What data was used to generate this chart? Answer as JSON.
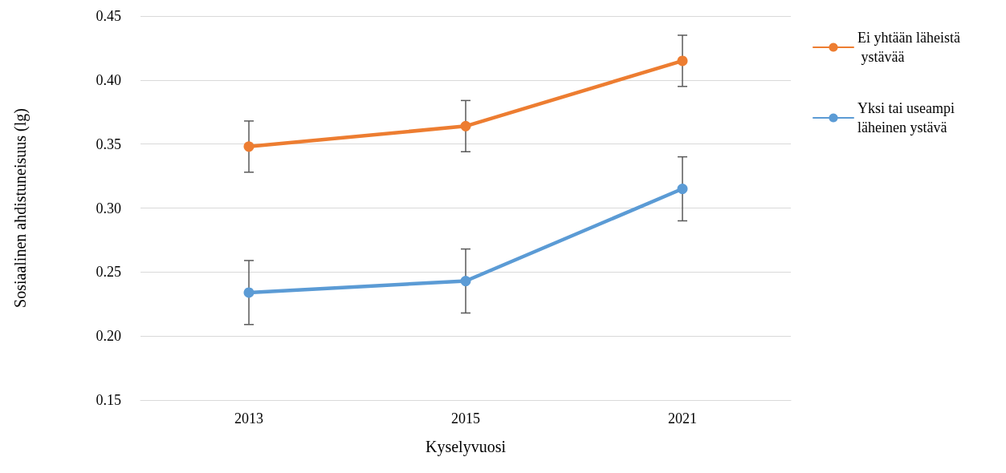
{
  "chart_data": {
    "type": "line",
    "xlabel": "Kyselyvuosi",
    "ylabel": "Sosiaalinen ahdistuneisuus (lg)",
    "categories": [
      "2013",
      "2015",
      "2021"
    ],
    "series": [
      {
        "name": "Ei yhtään läheistä ystävää",
        "color": "#ed7d31",
        "values": [
          0.348,
          0.364,
          0.415
        ],
        "errors": [
          0.02,
          0.02,
          0.02
        ]
      },
      {
        "name": "Yksi tai useampi läheinen ystävä",
        "color": "#5b9bd5",
        "values": [
          0.234,
          0.243,
          0.315
        ],
        "errors": [
          0.025,
          0.025,
          0.025
        ]
      }
    ],
    "ylim": [
      0.15,
      0.45
    ],
    "yticks": [
      0.15,
      {
        "value": 0.2,
        "label": "0.20"
      },
      0.25,
      {
        "value": 0.3,
        "label": "0.30"
      },
      0.35,
      {
        "value": 0.4,
        "label": "0.40"
      },
      0.45
    ],
    "grid": "y",
    "legend": "top right",
    "marker": "circle",
    "line_style": "solid"
  }
}
